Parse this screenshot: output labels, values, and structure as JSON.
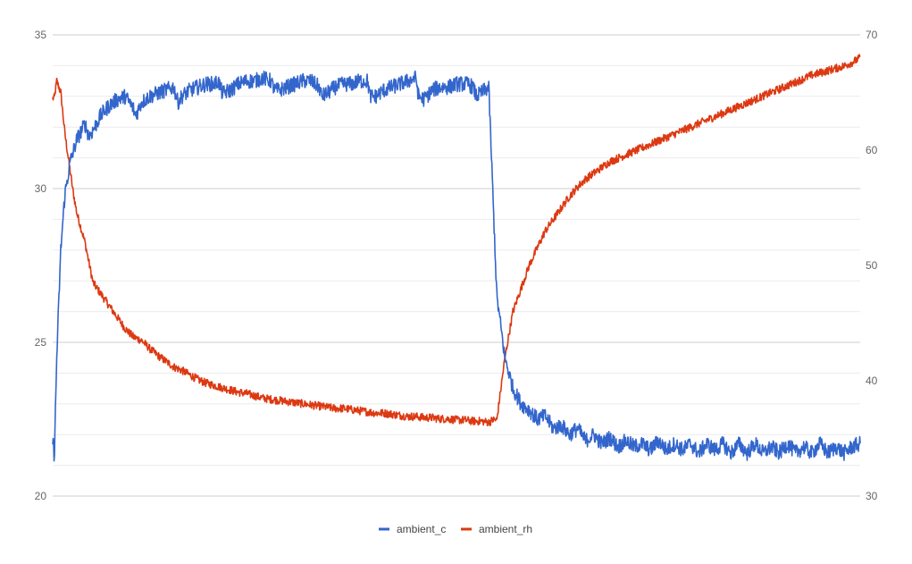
{
  "chart_data": {
    "type": "line",
    "title": "",
    "xlabel": "",
    "x_ticks_shown": false,
    "grid": true,
    "legend_placement": "bottom",
    "left_axis": {
      "ylim": [
        20,
        35
      ],
      "ticks": [
        "20",
        "25",
        "30",
        "35"
      ]
    },
    "right_axis": {
      "ylim": [
        30,
        70
      ],
      "ticks": [
        "30",
        "40",
        "50",
        "60",
        "70"
      ]
    },
    "x_range": [
      0,
      1000
    ],
    "series": [
      {
        "name": "ambient_c",
        "axis": "left",
        "color": "#3366cc",
        "noise": 0.25,
        "x": [
          0,
          2,
          5,
          10,
          15,
          22,
          30,
          40,
          45,
          50,
          60,
          70,
          80,
          90,
          100,
          102,
          105,
          110,
          120,
          130,
          140,
          150,
          153,
          155,
          160,
          170,
          180,
          190,
          200,
          205,
          210,
          220,
          230,
          240,
          250,
          260,
          270,
          275,
          280,
          290,
          300,
          310,
          320,
          330,
          333,
          340,
          350,
          360,
          370,
          380,
          390,
          393,
          400,
          410,
          420,
          430,
          440,
          450,
          453,
          460,
          470,
          480,
          490,
          500,
          510,
          515,
          520,
          525,
          530,
          535,
          540,
          550,
          560,
          570,
          580,
          590,
          600,
          610,
          620,
          630,
          640,
          650,
          660,
          670,
          680,
          690,
          700,
          710,
          720,
          730,
          740,
          750,
          760,
          770,
          780,
          790,
          800,
          810,
          820,
          830,
          840,
          850,
          860,
          870,
          880,
          890,
          900,
          910,
          920,
          930,
          940,
          950,
          960,
          970,
          980,
          990,
          1000
        ],
        "y": [
          21.8,
          21.3,
          24.5,
          28.0,
          29.8,
          30.9,
          31.6,
          32.1,
          31.7,
          31.9,
          32.4,
          32.7,
          32.9,
          33.0,
          32.6,
          32.4,
          32.5,
          32.8,
          33.0,
          33.1,
          33.2,
          33.3,
          33.0,
          32.8,
          33.0,
          33.2,
          33.3,
          33.4,
          33.4,
          33.5,
          33.1,
          33.2,
          33.4,
          33.5,
          33.5,
          33.6,
          33.5,
          33.2,
          33.2,
          33.3,
          33.4,
          33.5,
          33.5,
          33.3,
          33.0,
          33.1,
          33.3,
          33.4,
          33.4,
          33.5,
          33.5,
          33.0,
          33.0,
          33.2,
          33.3,
          33.4,
          33.5,
          33.6,
          33.0,
          32.9,
          33.2,
          33.3,
          33.3,
          33.4,
          33.4,
          33.4,
          33.3,
          33.0,
          33.1,
          33.2,
          33.3,
          26.5,
          24.5,
          23.5,
          23.0,
          22.8,
          22.5,
          22.6,
          22.2,
          22.3,
          22.0,
          22.2,
          21.8,
          22.0,
          21.7,
          21.9,
          21.6,
          21.8,
          21.6,
          21.7,
          21.5,
          21.8,
          21.5,
          21.7,
          21.5,
          21.7,
          21.4,
          21.7,
          21.5,
          21.7,
          21.4,
          21.7,
          21.4,
          21.7,
          21.4,
          21.6,
          21.4,
          21.7,
          21.4,
          21.6,
          21.4,
          21.7,
          21.4,
          21.6,
          21.4,
          21.6,
          21.7
        ]
      },
      {
        "name": "ambient_rh",
        "axis": "right",
        "color": "#dc3912",
        "noise": 0.35,
        "x": [
          0,
          2,
          5,
          10,
          15,
          20,
          25,
          30,
          40,
          45,
          50,
          60,
          70,
          80,
          90,
          100,
          110,
          120,
          130,
          140,
          150,
          160,
          170,
          180,
          190,
          200,
          210,
          220,
          230,
          240,
          250,
          260,
          270,
          280,
          290,
          300,
          310,
          320,
          330,
          340,
          350,
          360,
          370,
          380,
          390,
          400,
          410,
          420,
          430,
          440,
          450,
          460,
          470,
          480,
          490,
          500,
          510,
          520,
          530,
          540,
          545,
          550,
          560,
          570,
          580,
          590,
          600,
          610,
          620,
          630,
          640,
          650,
          660,
          670,
          680,
          690,
          700,
          710,
          720,
          730,
          740,
          750,
          760,
          770,
          780,
          790,
          800,
          810,
          820,
          830,
          840,
          850,
          860,
          870,
          880,
          890,
          900,
          910,
          920,
          930,
          940,
          950,
          960,
          970,
          980,
          990,
          1000
        ],
        "y": [
          64.5,
          64.5,
          66.0,
          65.0,
          61.5,
          59.0,
          56.5,
          54.5,
          52.0,
          50.2,
          48.5,
          47.5,
          46.5,
          45.5,
          44.5,
          43.8,
          43.5,
          42.8,
          42.2,
          41.7,
          41.2,
          40.9,
          40.5,
          40.1,
          39.8,
          39.6,
          39.4,
          39.2,
          39.0,
          38.9,
          38.7,
          38.5,
          38.4,
          38.3,
          38.2,
          38.1,
          38.0,
          37.9,
          37.8,
          37.7,
          37.6,
          37.6,
          37.5,
          37.4,
          37.3,
          37.2,
          37.2,
          37.1,
          37.0,
          36.9,
          36.9,
          36.8,
          36.8,
          36.7,
          36.7,
          36.6,
          36.6,
          36.5,
          36.5,
          36.4,
          36.6,
          36.6,
          42.0,
          46.0,
          48.0,
          50.0,
          51.5,
          53.0,
          54.0,
          55.0,
          56.0,
          56.8,
          57.5,
          58.0,
          58.5,
          59.0,
          59.3,
          59.6,
          59.9,
          60.2,
          60.5,
          60.8,
          61.1,
          61.4,
          61.7,
          62.0,
          62.3,
          62.6,
          62.9,
          63.2,
          63.5,
          63.8,
          64.1,
          64.4,
          64.7,
          65.0,
          65.3,
          65.6,
          65.9,
          66.2,
          66.5,
          66.7,
          66.9,
          67.1,
          67.3,
          67.6,
          68.0
        ]
      }
    ]
  }
}
